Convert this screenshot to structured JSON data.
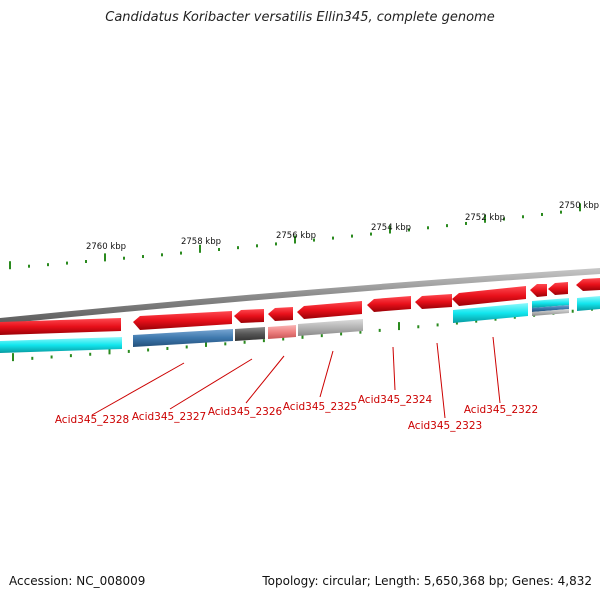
{
  "title": "Candidatus Koribacter versatilis Ellin345, complete genome",
  "footer": {
    "accession": "Accession: NC_008009",
    "summary": "Topology: circular; Length: 5,650,368 bp; Genes: 4,832"
  },
  "colors": {
    "backbone": "#8a8a8a",
    "forward_gene": "#e8101a",
    "reverse_cyan": "#12e6ee",
    "reverse_blue": "#3d78ad",
    "reverse_dark": "#555555",
    "reverse_pink": "#ee7f7f",
    "reverse_gray": "#b4b4b4",
    "tick": "#2a8a1e",
    "label": "#cc0000"
  },
  "scale_labels": [
    "2760 kbp",
    "2758 kbp",
    "2756 kbp",
    "2754 kbp",
    "2752 kbp",
    "2750 kbp"
  ],
  "gene_labels": [
    "Acid345_2328",
    "Acid345_2327",
    "Acid345_2326",
    "Acid345_2325",
    "Acid345_2324",
    "Acid345_2323",
    "Acid345_2322"
  ]
}
